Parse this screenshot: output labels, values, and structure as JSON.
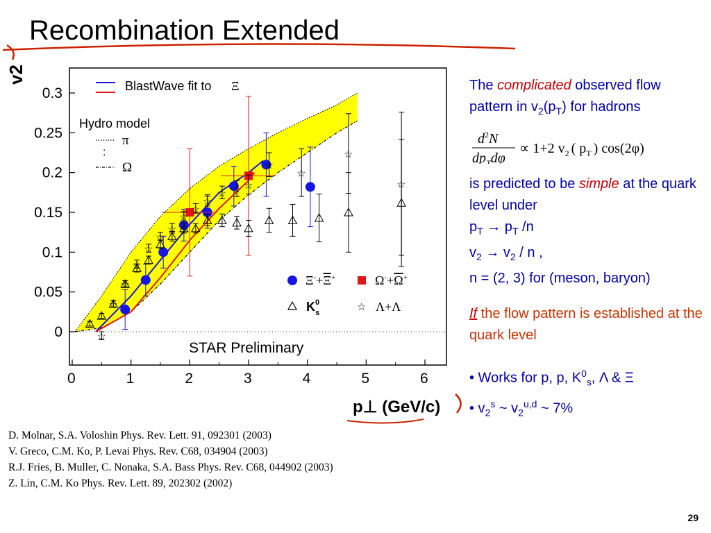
{
  "slide": {
    "title": "Recombination Extended",
    "page_number": "29"
  },
  "chart_data": {
    "type": "scatter",
    "xlabel": "p⊥ (GeV/c)",
    "ylabel": "v2",
    "xlim": [
      0,
      6.4
    ],
    "ylim": [
      -0.04,
      0.33
    ],
    "x_ticks": [
      "0",
      "1",
      "2",
      "3",
      "4",
      "5",
      "6"
    ],
    "y_ticks": [
      "0",
      "0.05",
      "0.1",
      "0.15",
      "0.2",
      "0.25",
      "0.3"
    ],
    "grid": false,
    "annotation": "STAR Preliminary",
    "legend_top": {
      "title": "BlastWave fit to",
      "symbol": "Ξ",
      "hydro_label": "Hydro model",
      "hydro_pi": "π",
      "hydro_omega": "Ω"
    },
    "legend_bottom": {
      "xi": "Ξ",
      "omega": "Ω",
      "ks": "K",
      "ks_sub": "s",
      "ks_sup": "0",
      "lambda": "Λ+Λ"
    },
    "colors": {
      "xi": "#1515e6",
      "omega": "#e61515",
      "band": "#ffff00",
      "black": "#000000"
    },
    "series": [
      {
        "name": "Ξ⁻+Ξ̄⁺",
        "marker": "circle",
        "color": "#1515e6",
        "x": [
          0.9,
          1.25,
          1.55,
          1.9,
          2.3,
          2.75,
          3.3,
          4.05
        ],
        "y": [
          0.028,
          0.065,
          0.1,
          0.134,
          0.15,
          0.183,
          0.21,
          0.182
        ],
        "err": [
          0.025,
          0.02,
          0.02,
          0.02,
          0.02,
          0.025,
          0.04,
          0.05
        ]
      },
      {
        "name": "Ω⁻+Ω̄⁺",
        "marker": "square",
        "color": "#e61515",
        "x": [
          2.0,
          3.0
        ],
        "y": [
          0.15,
          0.196
        ],
        "err": [
          0.08,
          0.1
        ]
      },
      {
        "name": "K0s",
        "marker": "triangle",
        "color": "#000000",
        "x": [
          0.3,
          0.5,
          0.7,
          0.9,
          1.1,
          1.3,
          1.5,
          1.7,
          1.9,
          2.1,
          2.3,
          2.55,
          2.8,
          3.0,
          3.35,
          3.75,
          4.2,
          4.7,
          5.6
        ],
        "y": [
          0.01,
          0.02,
          0.035,
          0.06,
          0.08,
          0.09,
          0.11,
          0.12,
          0.13,
          0.13,
          0.14,
          0.14,
          0.137,
          0.13,
          0.14,
          0.14,
          0.143,
          0.15,
          0.162
        ],
        "err": [
          0.003,
          0.003,
          0.004,
          0.004,
          0.005,
          0.005,
          0.005,
          0.006,
          0.006,
          0.006,
          0.007,
          0.008,
          0.008,
          0.01,
          0.015,
          0.02,
          0.03,
          0.05,
          0.08
        ]
      },
      {
        "name": "Λ+Λ̄",
        "marker": "star",
        "color": "#000000",
        "x": [
          0.5,
          0.7,
          0.9,
          1.1,
          1.3,
          1.5,
          1.7,
          1.9,
          2.1,
          2.3,
          2.55,
          2.8,
          3.0,
          3.35,
          3.9,
          4.7,
          5.6
        ],
        "y": [
          -0.005,
          0.035,
          0.06,
          0.085,
          0.105,
          0.12,
          0.13,
          0.145,
          0.155,
          0.165,
          0.175,
          0.18,
          0.185,
          0.21,
          0.2,
          0.224,
          0.186
        ],
        "err": [
          0.005,
          0.004,
          0.004,
          0.005,
          0.005,
          0.005,
          0.006,
          0.006,
          0.006,
          0.007,
          0.008,
          0.01,
          0.012,
          0.015,
          0.03,
          0.05,
          0.09
        ]
      }
    ],
    "hydro_band": {
      "upper": {
        "x": [
          0.05,
          0.5,
          1.0,
          1.5,
          2.0,
          2.5,
          3.0,
          3.5,
          4.0,
          4.5,
          4.85
        ],
        "y": [
          0.0,
          0.045,
          0.1,
          0.145,
          0.18,
          0.208,
          0.23,
          0.25,
          0.268,
          0.285,
          0.3
        ]
      },
      "lower": {
        "x": [
          0.05,
          0.5,
          1.0,
          1.5,
          2.0,
          2.5,
          3.0,
          3.5,
          4.0,
          4.5,
          4.85
        ],
        "y": [
          0.0,
          0.005,
          0.025,
          0.06,
          0.1,
          0.14,
          0.172,
          0.2,
          0.225,
          0.25,
          0.265
        ]
      }
    },
    "blastwave_blue": {
      "x": [
        0.4,
        1.0,
        1.5,
        2.0,
        2.5,
        3.0,
        3.25
      ],
      "y": [
        0.0,
        0.045,
        0.09,
        0.135,
        0.175,
        0.2,
        0.215
      ]
    },
    "blastwave_red": {
      "x": [
        0.4,
        1.0,
        1.5,
        2.0,
        2.5,
        3.0,
        3.1
      ],
      "y": [
        0.0,
        0.025,
        0.068,
        0.115,
        0.155,
        0.19,
        0.2
      ]
    }
  },
  "panel": {
    "line1_pre": "The ",
    "line1_em": "complicated",
    "line1_post": " observed flow pattern in v",
    "line1_sub": "2",
    "line1_p": "(p",
    "line1_sub_t": "T",
    "line1_end": ") for hadrons",
    "formula_num": "d",
    "formula_num_sup": "2",
    "formula_num_n": "N",
    "formula_den": "dp",
    "formula_den_sub": "T",
    "formula_den_phi": "dφ",
    "formula_rhs": "∝ 1+2 v",
    "formula_rhs_sub": "2",
    "formula_rhs_arg": "( p",
    "formula_rhs_arg_sub": "T",
    "formula_rhs_end": ") cos(2φ)",
    "line2_pre": "is predicted to be ",
    "line2_em": "simple",
    "line2_post": " at the quark level under",
    "rule1_a": "p",
    "rule1_a_sub": "T",
    "rule1_b": " → p",
    "rule1_b_sub": "T",
    "rule1_c": " /n",
    "rule2_a": "v",
    "rule2_a_sub": "2",
    "rule2_b": " → v",
    "rule2_b_sub": "2",
    "rule2_c": " / n ,",
    "rule3": "n = (2, 3) for (meson, baryon)",
    "if_word": "If",
    "if_rest": " the flow pattern is established at the quark level",
    "bullet1": "• Works for p, p, K",
    "bullet1_sup": "0",
    "bullet1_sub": "s",
    "bullet1_end": ", Λ & Ξ",
    "bullet2_pre": "•  v",
    "bullet2_sub": "2",
    "bullet2_sup": "s",
    "bullet2_mid": " ~ v",
    "bullet2_sub2": "2",
    "bullet2_sup2": "u,d",
    "bullet2_end": " ~ 7%"
  },
  "references": [
    "D. Molnar, S.A. Voloshin Phys. Rev. Lett. 91, 092301 (2003)",
    "V. Greco, C.M. Ko, P. Levai Phys. Rev. C68, 034904 (2003)",
    "R.J. Fries, B. Muller, C. Nonaka, S.A. Bass Phys. Rev. C68, 044902 (2003)",
    "Z. Lin, C.M. Ko Phys. Rev. Lett. 89, 202302 (2002)"
  ]
}
